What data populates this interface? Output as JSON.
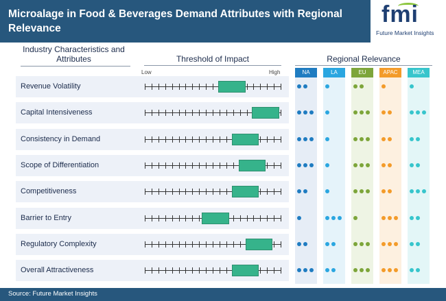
{
  "title": "Microalage in Food & Beverages Demand Attributes with Regional Relevance",
  "logo": {
    "letters": "fmi",
    "tagline": "Future Market Insights"
  },
  "headings": {
    "characteristics": "Industry Characteristics and Attributes",
    "threshold": "Threshold of Impact",
    "regional": "Regional Relevance",
    "low": "Low",
    "high": "High"
  },
  "regions": [
    {
      "code": "NA",
      "color": "#1f7cc1",
      "bg": "#e6edf6"
    },
    {
      "code": "LA",
      "color": "#2aa6e0",
      "bg": "#e5f3fa"
    },
    {
      "code": "EU",
      "color": "#7da53a",
      "bg": "#eef4e4"
    },
    {
      "code": "APAC",
      "color": "#f39b2a",
      "bg": "#fdf0e0"
    },
    {
      "code": "MEA",
      "color": "#37c5cc",
      "bg": "#e3f6f7"
    }
  ],
  "rows": [
    {
      "label": "Revenue Volatility",
      "impact_start": 0.54,
      "impact_end": 0.74,
      "relevance": [
        2,
        1,
        2,
        1,
        1
      ]
    },
    {
      "label": "Capital Intensiveness",
      "impact_start": 0.79,
      "impact_end": 0.99,
      "relevance": [
        3,
        1,
        3,
        2,
        3
      ]
    },
    {
      "label": "Consistency in Demand",
      "impact_start": 0.64,
      "impact_end": 0.84,
      "relevance": [
        3,
        1,
        3,
        2,
        2
      ]
    },
    {
      "label": "Scope of Differentiation",
      "impact_start": 0.69,
      "impact_end": 0.89,
      "relevance": [
        3,
        1,
        3,
        2,
        2
      ]
    },
    {
      "label": "Competitiveness",
      "impact_start": 0.64,
      "impact_end": 0.84,
      "relevance": [
        2,
        1,
        3,
        2,
        3
      ]
    },
    {
      "label": "Barrier to Entry",
      "impact_start": 0.42,
      "impact_end": 0.62,
      "relevance": [
        1,
        3,
        1,
        3,
        2
      ]
    },
    {
      "label": "Regulatory Complexity",
      "impact_start": 0.74,
      "impact_end": 0.94,
      "relevance": [
        2,
        2,
        3,
        3,
        2
      ]
    },
    {
      "label": "Overall Attractiveness",
      "impact_start": 0.64,
      "impact_end": 0.84,
      "relevance": [
        3,
        2,
        3,
        3,
        2
      ]
    }
  ],
  "source": "Source: Future Market Insights"
}
